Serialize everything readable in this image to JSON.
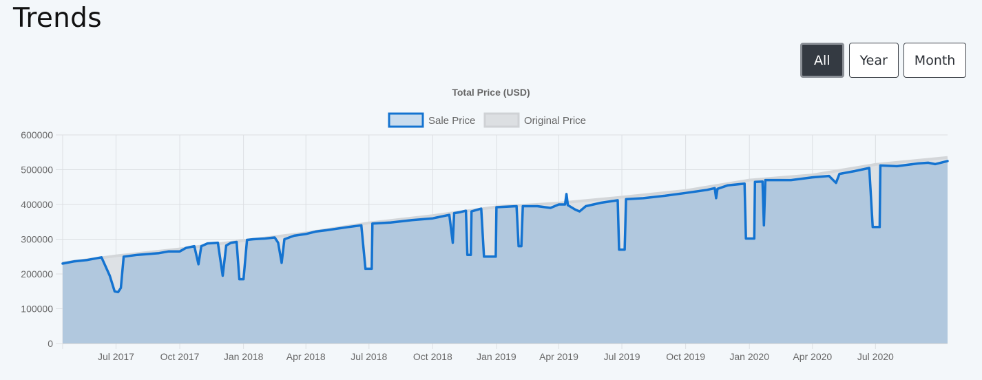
{
  "page": {
    "title": "Trends"
  },
  "range_buttons": [
    {
      "label": "All",
      "active": true
    },
    {
      "label": "Year",
      "active": false
    },
    {
      "label": "Month",
      "active": false
    }
  ],
  "colors": {
    "sale_line": "#1473d0",
    "sale_fill": "#b1c8de",
    "original_line": "#d3d6d9",
    "grid": "#dcdfe3",
    "text": "#666666"
  },
  "chart_data": {
    "type": "area",
    "title": "Total Price (USD)",
    "legend_position": "top",
    "grid": true,
    "x_range": [
      "2017-04-15",
      "2020-10-13"
    ],
    "ylim": [
      0,
      600000
    ],
    "y_ticks": [
      0,
      100000,
      200000,
      300000,
      400000,
      500000,
      600000
    ],
    "y_tick_labels": [
      "0",
      "100000",
      "200000",
      "300000",
      "400000",
      "500000",
      "600000"
    ],
    "x_ticks": [
      "2017-07-01",
      "2017-10-01",
      "2018-01-01",
      "2018-04-01",
      "2018-07-01",
      "2018-10-01",
      "2019-01-01",
      "2019-04-01",
      "2019-07-01",
      "2019-10-01",
      "2020-01-01",
      "2020-04-01",
      "2020-07-01"
    ],
    "x_tick_labels": [
      "Jul 2017",
      "Oct 2017",
      "Jan 2018",
      "Apr 2018",
      "Jul 2018",
      "Oct 2018",
      "Jan 2019",
      "Apr 2019",
      "Jul 2019",
      "Oct 2019",
      "Jan 2020",
      "Apr 2020",
      "Jul 2020"
    ],
    "series": [
      {
        "name": "Sale Price",
        "points": [
          [
            "2017-04-15",
            230000
          ],
          [
            "2017-05-01",
            236000
          ],
          [
            "2017-05-20",
            240000
          ],
          [
            "2017-06-10",
            248000
          ],
          [
            "2017-06-22",
            195000
          ],
          [
            "2017-06-29",
            150000
          ],
          [
            "2017-07-04",
            148000
          ],
          [
            "2017-07-08",
            160000
          ],
          [
            "2017-07-12",
            250000
          ],
          [
            "2017-08-01",
            255000
          ],
          [
            "2017-09-01",
            260000
          ],
          [
            "2017-09-15",
            265000
          ],
          [
            "2017-10-01",
            265000
          ],
          [
            "2017-10-10",
            275000
          ],
          [
            "2017-10-22",
            280000
          ],
          [
            "2017-10-28",
            228000
          ],
          [
            "2017-11-01",
            280000
          ],
          [
            "2017-11-10",
            288000
          ],
          [
            "2017-11-25",
            290000
          ],
          [
            "2017-12-02",
            195000
          ],
          [
            "2017-12-07",
            282000
          ],
          [
            "2017-12-14",
            290000
          ],
          [
            "2017-12-22",
            292000
          ],
          [
            "2017-12-26",
            185000
          ],
          [
            "2018-01-01",
            185000
          ],
          [
            "2018-01-06",
            298000
          ],
          [
            "2018-01-15",
            300000
          ],
          [
            "2018-02-01",
            302000
          ],
          [
            "2018-02-15",
            305000
          ],
          [
            "2018-02-20",
            290000
          ],
          [
            "2018-02-25",
            232000
          ],
          [
            "2018-03-01",
            300000
          ],
          [
            "2018-03-15",
            310000
          ],
          [
            "2018-04-01",
            315000
          ],
          [
            "2018-04-15",
            322000
          ],
          [
            "2018-05-01",
            326000
          ],
          [
            "2018-06-01",
            335000
          ],
          [
            "2018-06-20",
            340000
          ],
          [
            "2018-06-26",
            215000
          ],
          [
            "2018-07-05",
            215000
          ],
          [
            "2018-07-06",
            345000
          ],
          [
            "2018-08-01",
            348000
          ],
          [
            "2018-09-01",
            355000
          ],
          [
            "2018-10-01",
            360000
          ],
          [
            "2018-10-25",
            370000
          ],
          [
            "2018-10-30",
            290000
          ],
          [
            "2018-11-01",
            375000
          ],
          [
            "2018-11-10",
            378000
          ],
          [
            "2018-11-18",
            382000
          ],
          [
            "2018-11-20",
            255000
          ],
          [
            "2018-11-25",
            255000
          ],
          [
            "2018-11-26",
            380000
          ],
          [
            "2018-12-10",
            388000
          ],
          [
            "2018-12-14",
            250000
          ],
          [
            "2018-12-31",
            250000
          ],
          [
            "2019-01-01",
            392000
          ],
          [
            "2019-01-30",
            395000
          ],
          [
            "2019-02-02",
            280000
          ],
          [
            "2019-02-06",
            280000
          ],
          [
            "2019-02-08",
            395000
          ],
          [
            "2019-03-01",
            395000
          ],
          [
            "2019-03-20",
            390000
          ],
          [
            "2019-04-01",
            400000
          ],
          [
            "2019-04-10",
            400000
          ],
          [
            "2019-04-12",
            430000
          ],
          [
            "2019-04-14",
            398000
          ],
          [
            "2019-04-25",
            385000
          ],
          [
            "2019-05-01",
            380000
          ],
          [
            "2019-05-10",
            395000
          ],
          [
            "2019-06-01",
            405000
          ],
          [
            "2019-06-25",
            412000
          ],
          [
            "2019-06-27",
            270000
          ],
          [
            "2019-07-05",
            270000
          ],
          [
            "2019-07-07",
            415000
          ],
          [
            "2019-08-01",
            418000
          ],
          [
            "2019-09-01",
            425000
          ],
          [
            "2019-10-01",
            433000
          ],
          [
            "2019-11-01",
            442000
          ],
          [
            "2019-11-12",
            447000
          ],
          [
            "2019-11-14",
            418000
          ],
          [
            "2019-11-16",
            445000
          ],
          [
            "2019-12-01",
            455000
          ],
          [
            "2019-12-25",
            460000
          ],
          [
            "2019-12-27",
            302000
          ],
          [
            "2020-01-08",
            302000
          ],
          [
            "2020-01-09",
            465000
          ],
          [
            "2020-01-20",
            466000
          ],
          [
            "2020-01-22",
            340000
          ],
          [
            "2020-01-24",
            470000
          ],
          [
            "2020-02-15",
            470000
          ],
          [
            "2020-03-01",
            470000
          ],
          [
            "2020-04-01",
            478000
          ],
          [
            "2020-04-25",
            482000
          ],
          [
            "2020-05-05",
            462000
          ],
          [
            "2020-05-10",
            488000
          ],
          [
            "2020-06-01",
            496000
          ],
          [
            "2020-06-22",
            505000
          ],
          [
            "2020-06-27",
            335000
          ],
          [
            "2020-07-07",
            335000
          ],
          [
            "2020-07-08",
            512000
          ],
          [
            "2020-08-01",
            510000
          ],
          [
            "2020-09-01",
            518000
          ],
          [
            "2020-09-15",
            520000
          ],
          [
            "2020-09-25",
            516000
          ],
          [
            "2020-10-13",
            525000
          ]
        ]
      },
      {
        "name": "Original Price",
        "points": [
          [
            "2017-04-15",
            232000
          ],
          [
            "2017-07-01",
            252000
          ],
          [
            "2017-10-01",
            272000
          ],
          [
            "2018-01-01",
            296000
          ],
          [
            "2018-04-01",
            318000
          ],
          [
            "2018-07-01",
            347000
          ],
          [
            "2018-10-01",
            368000
          ],
          [
            "2019-01-01",
            393000
          ],
          [
            "2019-04-01",
            404000
          ],
          [
            "2019-07-01",
            421000
          ],
          [
            "2019-10-01",
            440000
          ],
          [
            "2020-01-01",
            470000
          ],
          [
            "2020-04-01",
            485000
          ],
          [
            "2020-07-01",
            515000
          ],
          [
            "2020-10-13",
            535000
          ]
        ]
      }
    ]
  }
}
